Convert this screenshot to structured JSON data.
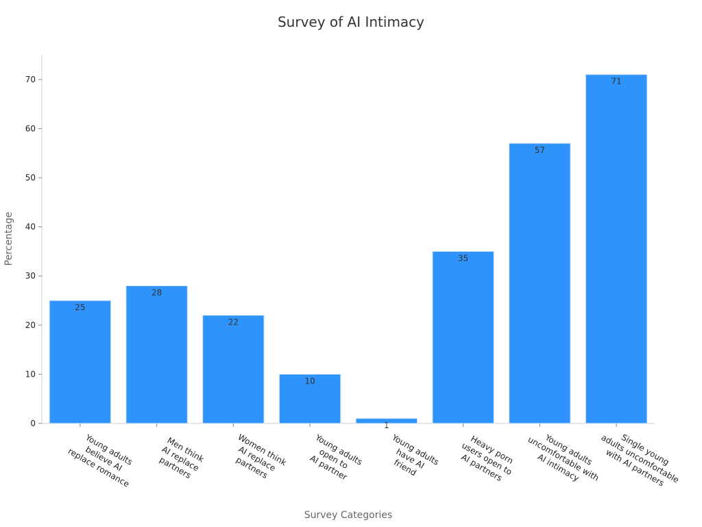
{
  "chart_data": {
    "type": "bar",
    "title": "Survey of AI Intimacy",
    "xlabel": "Survey Categories",
    "ylabel": "Percentage",
    "ylim": [
      0,
      75
    ],
    "yticks": [
      0,
      10,
      20,
      30,
      40,
      50,
      60,
      70
    ],
    "bar_color": "#2e93fa",
    "grid": false,
    "categories": [
      [
        "Young adults",
        "believe AI",
        "replace romance"
      ],
      [
        "Men think",
        "AI replace",
        "partners"
      ],
      [
        "Women think",
        "AI replace",
        "partners"
      ],
      [
        "Young adults",
        "open to",
        "AI partner"
      ],
      [
        "Young adults",
        "have AI",
        "friend"
      ],
      [
        "Heavy porn",
        "users open to",
        "AI partners"
      ],
      [
        "Young adults",
        "uncomfortable with",
        "AI intimacy"
      ],
      [
        "Single young",
        "adults uncomfortable",
        "with AI partners"
      ]
    ],
    "values": [
      25,
      28,
      22,
      10,
      1,
      35,
      57,
      71
    ]
  }
}
